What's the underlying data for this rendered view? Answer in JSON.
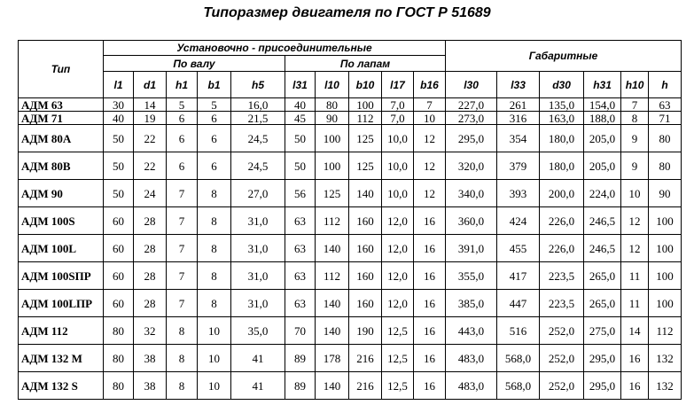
{
  "title": "Типоразмер двигателя по ГОСТ Р 51689",
  "table": {
    "header": {
      "type": "Тип",
      "group_mount": "Установочно - присоединительные",
      "group_shaft": "По валу",
      "group_feet": "По лапам",
      "group_overall": "Габаритные",
      "columns": [
        "l1",
        "d1",
        "h1",
        "b1",
        "h5",
        "l31",
        "l10",
        "b10",
        "l17",
        "b16",
        "l30",
        "l33",
        "d30",
        "h31",
        "h10",
        "h"
      ]
    },
    "rows": [
      [
        "АДМ 63",
        "30",
        "14",
        "5",
        "5",
        "16,0",
        "40",
        "80",
        "100",
        "7,0",
        "7",
        "227,0",
        "261",
        "135,0",
        "154,0",
        "7",
        "63"
      ],
      [
        "АДМ 71",
        "40",
        "19",
        "6",
        "6",
        "21,5",
        "45",
        "90",
        "112",
        "7,0",
        "10",
        "273,0",
        "316",
        "163,0",
        "188,0",
        "8",
        "71"
      ],
      [
        "АДМ 80А",
        "50",
        "22",
        "6",
        "6",
        "24,5",
        "50",
        "100",
        "125",
        "10,0",
        "12",
        "295,0",
        "354",
        "180,0",
        "205,0",
        "9",
        "80"
      ],
      [
        "АДМ 80В",
        "50",
        "22",
        "6",
        "6",
        "24,5",
        "50",
        "100",
        "125",
        "10,0",
        "12",
        "320,0",
        "379",
        "180,0",
        "205,0",
        "9",
        "80"
      ],
      [
        "АДМ 90",
        "50",
        "24",
        "7",
        "8",
        "27,0",
        "56",
        "125",
        "140",
        "10,0",
        "12",
        "340,0",
        "393",
        "200,0",
        "224,0",
        "10",
        "90"
      ],
      [
        "АДМ 100S",
        "60",
        "28",
        "7",
        "8",
        "31,0",
        "63",
        "112",
        "160",
        "12,0",
        "16",
        "360,0",
        "424",
        "226,0",
        "246,5",
        "12",
        "100"
      ],
      [
        "АДМ 100L",
        "60",
        "28",
        "7",
        "8",
        "31,0",
        "63",
        "140",
        "160",
        "12,0",
        "16",
        "391,0",
        "455",
        "226,0",
        "246,5",
        "12",
        "100"
      ],
      [
        "АДМ 100SПР",
        "60",
        "28",
        "7",
        "8",
        "31,0",
        "63",
        "112",
        "160",
        "12,0",
        "16",
        "355,0",
        "417",
        "223,5",
        "265,0",
        "11",
        "100"
      ],
      [
        "АДМ 100LПР",
        "60",
        "28",
        "7",
        "8",
        "31,0",
        "63",
        "140",
        "160",
        "12,0",
        "16",
        "385,0",
        "447",
        "223,5",
        "265,0",
        "11",
        "100"
      ],
      [
        "АДМ 112",
        "80",
        "32",
        "8",
        "10",
        "35,0",
        "70",
        "140",
        "190",
        "12,5",
        "16",
        "443,0",
        "516",
        "252,0",
        "275,0",
        "14",
        "112"
      ],
      [
        "АДМ 132 М",
        "80",
        "38",
        "8",
        "10",
        "41",
        "89",
        "178",
        "216",
        "12,5",
        "16",
        "483,0",
        "568,0",
        "252,0",
        "295,0",
        "16",
        "132"
      ],
      [
        "АДМ 132 S",
        "80",
        "38",
        "8",
        "10",
        "41",
        "89",
        "140",
        "216",
        "12,5",
        "16",
        "483,0",
        "568,0",
        "252,0",
        "295,0",
        "16",
        "132"
      ]
    ]
  }
}
